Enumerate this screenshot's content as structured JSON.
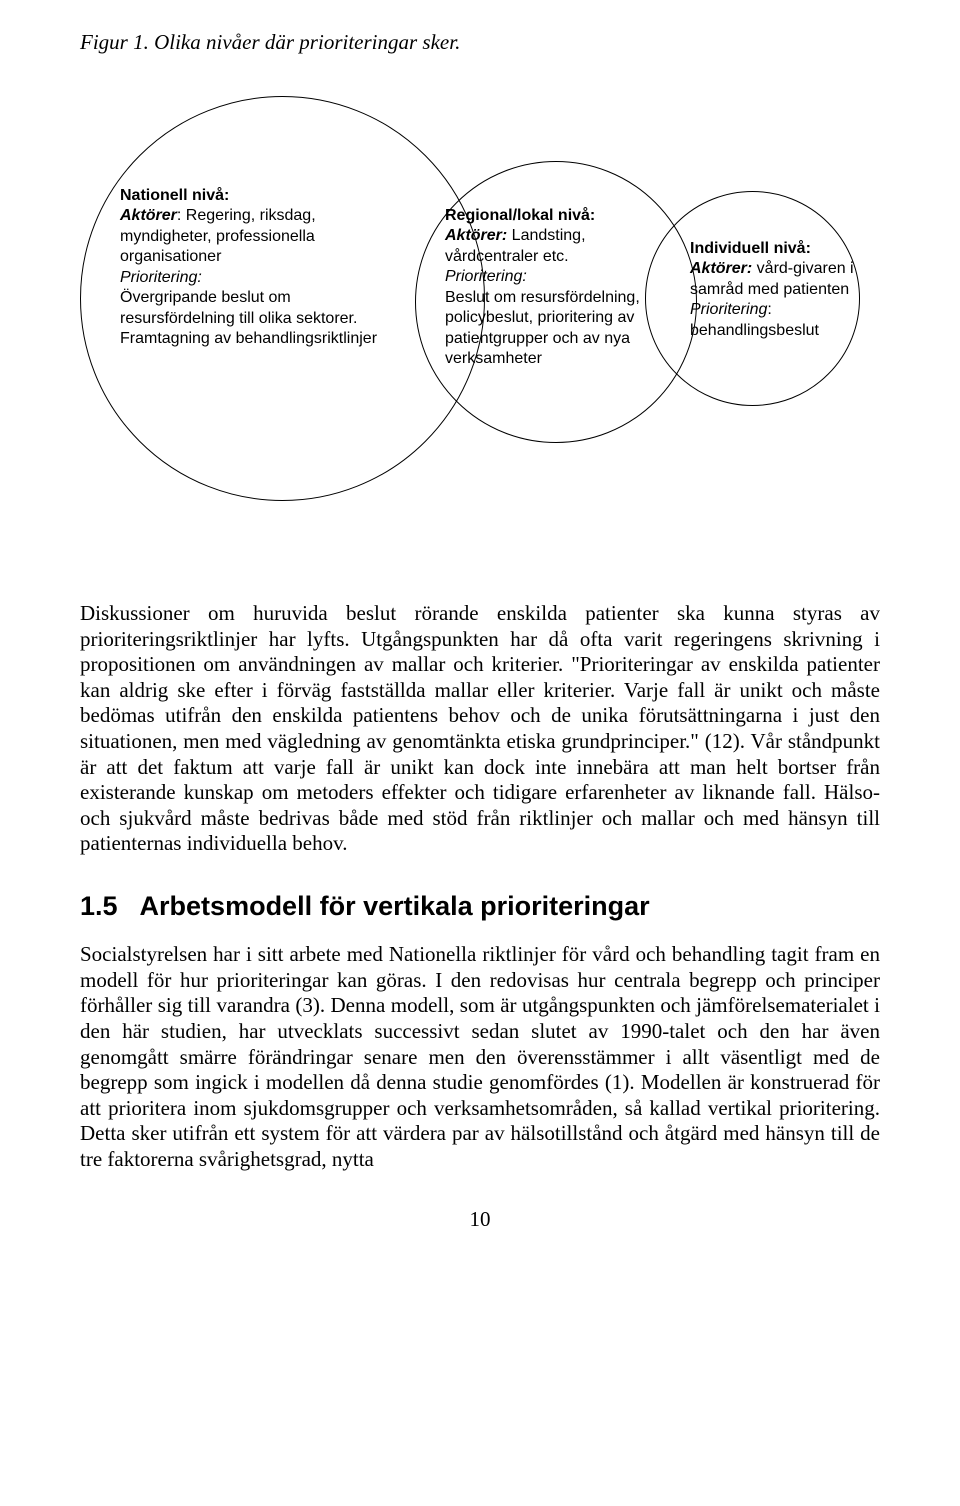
{
  "figure": {
    "caption": "Figur 1. Olika nivåer där prioriteringar sker.",
    "national": {
      "title": "Nationell nivå:",
      "actors_label": "Aktörer",
      "actors": ": Regering, riksdag, myndigheter, professionella organisationer",
      "priority_label": "Prioritering:",
      "priority_text": "Övergripande beslut om resursfördelning till olika sektorer.",
      "extra": "Framtagning av behandlingsriktlinjer"
    },
    "regional": {
      "title": "Regional/lokal nivå:",
      "actors_label": "Aktörer:",
      "actors": " Landsting, vårdcentraler etc.",
      "priority_label": "Prioritering:",
      "priority_text": "Beslut om resursfördelning, policybeslut, prioritering av patientgrupper och av nya verksamheter"
    },
    "individual": {
      "title": "Individuell nivå:",
      "actors_label": "Aktörer:",
      "actors": " vård-givaren i samråd med patienten",
      "priority_label": "Prioritering",
      "priority_text": ": behandlingsbeslut"
    }
  },
  "paragraph1": "Diskussioner om huruvida beslut rörande enskilda patienter ska kunna styras av prioriteringsriktlinjer har lyfts. Utgångspunkten har då ofta varit regeringens skrivning i propositionen om användningen av mallar och kriterier. \"Prioriteringar av enskilda patienter kan aldrig ske efter i förväg fastställda mallar eller kriterier. Varje fall är unikt och måste bedömas utifrån den enskilda patientens behov och de unika förutsättningarna i just den situationen, men med vägledning av genomtänkta etiska grundprinciper.\" (12). Vår ståndpunkt är att det faktum att varje fall är unikt kan dock inte innebära att man helt bortser från existerande kunskap om metoders effekter och tidigare erfarenheter av liknande fall. Hälso- och sjukvård måste bedrivas både med stöd från riktlinjer och mallar och med hänsyn till patienternas individuella behov.",
  "section": {
    "number": "1.5",
    "title": "Arbetsmodell för vertikala prioriteringar"
  },
  "paragraph2": "Socialstyrelsen har i sitt arbete med Nationella riktlinjer för vård och behandling tagit fram en modell för hur prioriteringar kan göras. I den redovisas hur centrala begrepp och principer förhåller sig till varandra (3). Denna modell, som är utgångspunkten och jämförelsematerialet i den här studien, har utvecklats successivt sedan slutet av 1990-talet och den har även genomgått smärre förändringar senare men den överensstämmer i allt väsentligt med de begrepp som ingick i modellen då denna studie genomfördes (1). Modellen är konstruerad för att prioritera inom sjukdomsgrupper och verksamhetsområden, så kallad vertikal prioritering. Detta sker utifrån ett system för att värdera par av hälsotillstånd och åtgärd med hänsyn till de tre faktorerna svårighetsgrad, nytta",
  "page_number": "10"
}
